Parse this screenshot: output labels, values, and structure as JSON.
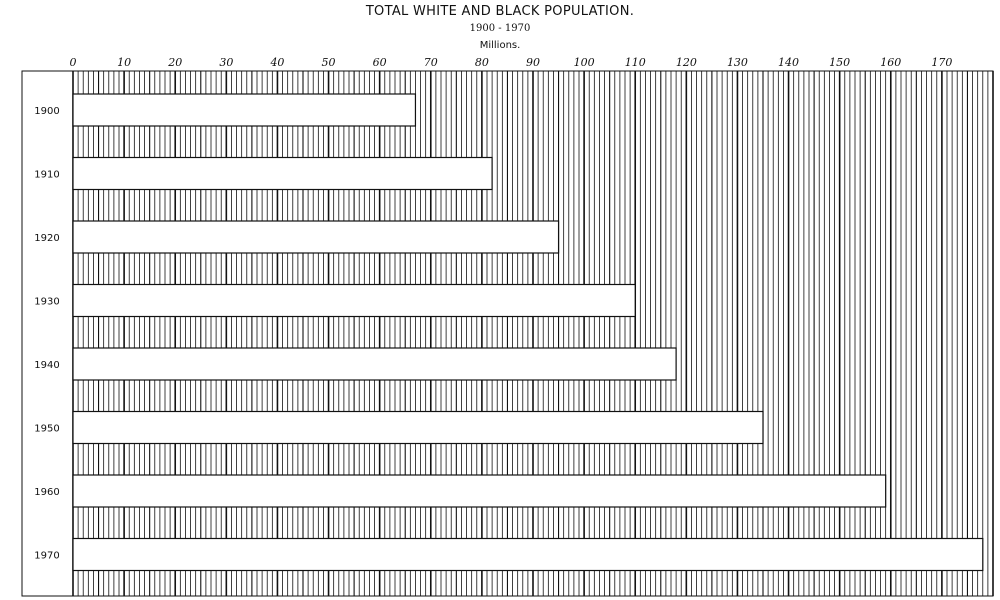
{
  "chart_data": {
    "type": "bar",
    "orientation": "horizontal",
    "title": "TOTAL WHITE AND BLACK POPULATION.",
    "subtitle": "1900 - 1970",
    "unit_label": "Millions.",
    "categories": [
      "1900",
      "1910",
      "1920",
      "1930",
      "1940",
      "1950",
      "1960",
      "1970"
    ],
    "values": [
      67,
      82,
      95,
      110,
      118,
      135,
      159,
      178
    ],
    "xlim": [
      0,
      180
    ],
    "x_ticks": [
      "0",
      "10",
      "20",
      "30",
      "40",
      "50",
      "60",
      "70",
      "80",
      "90",
      "100",
      "110",
      "120",
      "130",
      "140",
      "150",
      "160",
      "170"
    ],
    "tick_axis_position": "top",
    "grid": true,
    "bar_color": "#ffffff",
    "line_color": "#111111"
  }
}
